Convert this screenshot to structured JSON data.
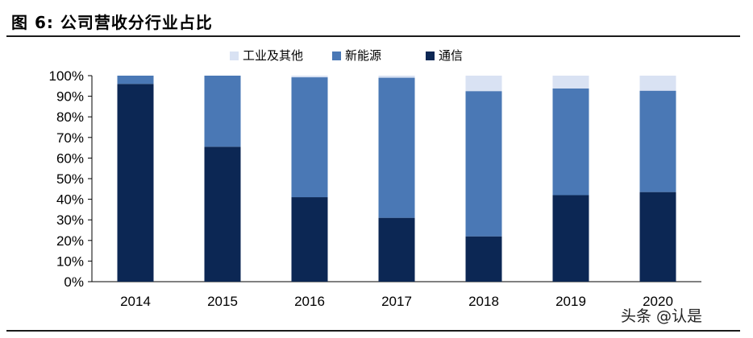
{
  "title": "图 6:  公司营收分行业占比",
  "watermark": "头条 @认是",
  "colors": {
    "industrial_other": "#d9e2f3",
    "new_energy": "#4a78b5",
    "telecom": "#0c2754",
    "axis": "#000000"
  },
  "chart_data": {
    "type": "bar",
    "stacked": true,
    "categories": [
      "2014",
      "2015",
      "2016",
      "2017",
      "2018",
      "2019",
      "2020"
    ],
    "series": [
      {
        "name": "通信",
        "color_key": "telecom",
        "values": [
          96,
          65.5,
          41,
          31,
          22,
          42,
          43.5
        ]
      },
      {
        "name": "新能源",
        "color_key": "new_energy",
        "values": [
          4,
          34.5,
          58.2,
          68,
          70.5,
          51.8,
          49.2
        ]
      },
      {
        "name": "工业及其他",
        "color_key": "industrial_other",
        "values": [
          0,
          0,
          0.8,
          1,
          7.5,
          6.2,
          7.3
        ]
      }
    ],
    "legend_order": [
      "工业及其他",
      "新能源",
      "通信"
    ],
    "ylim": [
      0,
      100
    ],
    "yticks": [
      "0%",
      "10%",
      "20%",
      "30%",
      "40%",
      "50%",
      "60%",
      "70%",
      "80%",
      "90%",
      "100%"
    ],
    "legend_position": "top",
    "grid": false
  }
}
